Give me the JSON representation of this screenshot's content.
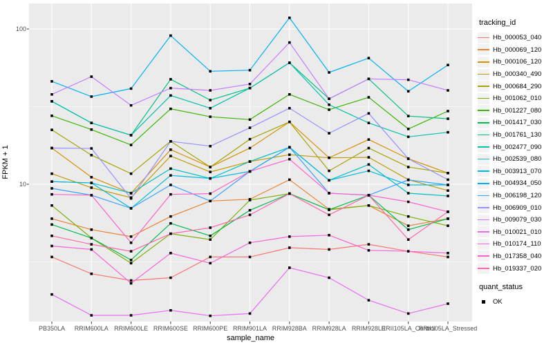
{
  "axes": {
    "x_title": "sample_name",
    "y_title": "FPKM + 1",
    "y_tick_labels": [
      "100",
      "10"
    ]
  },
  "legend": {
    "tracking_title": "tracking_id",
    "quant_title": "quant_status",
    "quant_items": [
      {
        "label": "OK"
      }
    ]
  },
  "colors": {
    "panel_bg": "#ebebeb",
    "grid": "#ffffff",
    "tick": "#333333",
    "tick_text": "#4d4d4d",
    "marker": "#000000"
  },
  "chart_data": {
    "type": "line",
    "title": "",
    "xlabel": "sample_name",
    "ylabel": "FPKM + 1",
    "yscale": "log10",
    "ylim": [
      1.3,
      130
    ],
    "y_major_ticks": [
      100,
      10
    ],
    "y_minor_ticks": [
      31.62,
      3.162
    ],
    "grid": true,
    "legend_position": "right",
    "marker": "black-square",
    "quant_status_values": [
      "OK"
    ],
    "categories": [
      "PB350LA",
      "RRIM600LA",
      "RRIM600LE",
      "RRIM600SE",
      "RRIM600PE",
      "RRIM901LA",
      "RRIM928BA",
      "RRIM928LA",
      "RRIM928LE",
      "RRII105LA_Control",
      "RRII105LA_Stressed"
    ],
    "series": [
      {
        "name": "Hb_000053_040",
        "color": "#F8766D",
        "values": [
          3.4,
          2.65,
          2.4,
          2.5,
          3.4,
          3.4,
          3.9,
          3.8,
          4.1,
          3.7,
          3.4
        ]
      },
      {
        "name": "Hb_000069_120",
        "color": "#EA8331",
        "values": [
          6.0,
          5.1,
          4.6,
          6.2,
          7.8,
          8.0,
          10.7,
          6.9,
          7.3,
          5.4,
          6.0
        ]
      },
      {
        "name": "Hb_000106_120",
        "color": "#D89000",
        "values": [
          17.1,
          11.1,
          8.75,
          16.7,
          12.9,
          17.1,
          25.2,
          14.8,
          19.4,
          14.6,
          11.8
        ]
      },
      {
        "name": "Hb_000340_490",
        "color": "#C09B00",
        "values": [
          11.7,
          9.5,
          8.2,
          15.2,
          12.0,
          14.0,
          15.5,
          14.8,
          14.9,
          10.7,
          9.1
        ]
      },
      {
        "name": "Hb_000684_290",
        "color": "#A3A500",
        "values": [
          22.4,
          15.4,
          11.7,
          18.9,
          12.9,
          19.5,
          25.2,
          12.2,
          17.1,
          12.9,
          11.8
        ]
      },
      {
        "name": "Hb_001062_010",
        "color": "#7CAE00",
        "values": [
          7.3,
          4.5,
          3.1,
          4.8,
          4.4,
          7.9,
          8.7,
          6.85,
          7.3,
          6.2,
          5.4
        ]
      },
      {
        "name": "Hb_001227_080",
        "color": "#39B600",
        "values": [
          27.6,
          22.5,
          17.9,
          30.6,
          27.2,
          26.1,
          37.9,
          30.2,
          36.3,
          22.7,
          29.6
        ]
      },
      {
        "name": "Hb_001417_030",
        "color": "#00BB4E",
        "values": [
          5.5,
          4.5,
          3.25,
          5.6,
          4.65,
          6.8,
          8.7,
          6.85,
          8.5,
          5.1,
          6.0
        ]
      },
      {
        "name": "Hb_001761_130",
        "color": "#00C087",
        "values": [
          34.2,
          24.8,
          20.7,
          47.4,
          34.8,
          41.6,
          60.6,
          35.5,
          47.7,
          27.5,
          26.4
        ]
      },
      {
        "name": "Hb_002477_090",
        "color": "#00C1A9",
        "values": [
          34.2,
          24.8,
          20.7,
          37.3,
          30.9,
          41.6,
          60.6,
          32.5,
          24.8,
          20.2,
          21.6
        ]
      },
      {
        "name": "Hb_002539_080",
        "color": "#00BFC4",
        "values": [
          10.4,
          10.2,
          8.75,
          12.6,
          10.9,
          14.0,
          17.3,
          10.6,
          13.4,
          8.75,
          8.4
        ]
      },
      {
        "name": "Hb_003913_070",
        "color": "#00BAE0",
        "values": [
          10.4,
          10.2,
          7.0,
          11.4,
          10.9,
          12.1,
          17.3,
          10.6,
          12.2,
          9.9,
          9.9
        ]
      },
      {
        "name": "Hb_004934_050",
        "color": "#00B0F6",
        "values": [
          46,
          36.7,
          41.3,
          90.6,
          53.4,
          54.3,
          118,
          52.5,
          64.9,
          39.7,
          58.6
        ]
      },
      {
        "name": "Hb_006198_120",
        "color": "#35A2FF",
        "values": [
          9.4,
          8.5,
          7.0,
          9.9,
          7.8,
          12.1,
          17.3,
          8.75,
          8.5,
          10.65,
          9.9
        ]
      },
      {
        "name": "Hb_006909_010",
        "color": "#9590FF",
        "values": [
          17.1,
          17.0,
          8.1,
          18.9,
          17.6,
          23.1,
          30.9,
          21.3,
          28.6,
          14.6,
          10.7
        ]
      },
      {
        "name": "Hb_009079_030",
        "color": "#C77CFF",
        "values": [
          37.9,
          49.3,
          32.2,
          41.6,
          40.2,
          44.2,
          81.8,
          35.5,
          47.7,
          47.1,
          40.2
        ]
      },
      {
        "name": "Hb_010021_010",
        "color": "#E76BF3",
        "values": [
          1.95,
          1.43,
          1.43,
          1.54,
          1.42,
          1.47,
          2.9,
          2.5,
          1.79,
          1.47,
          1.7
        ]
      },
      {
        "name": "Hb_010174_110",
        "color": "#FA62DB",
        "values": [
          4.0,
          3.8,
          2.3,
          3.6,
          3.1,
          4.2,
          4.6,
          4.7,
          3.75,
          3.7,
          3.6
        ]
      },
      {
        "name": "Hb_017358_040",
        "color": "#FF61CC",
        "values": [
          8.6,
          8.5,
          4.2,
          8.6,
          8.7,
          12.1,
          14.5,
          8.75,
          8.5,
          7.7,
          6.65
        ]
      },
      {
        "name": "Hb_019337_020",
        "color": "#FF65AC",
        "values": [
          4.65,
          4.1,
          3.7,
          4.8,
          5.25,
          6.35,
          8.7,
          6.35,
          8.5,
          4.4,
          6.65
        ]
      }
    ]
  }
}
